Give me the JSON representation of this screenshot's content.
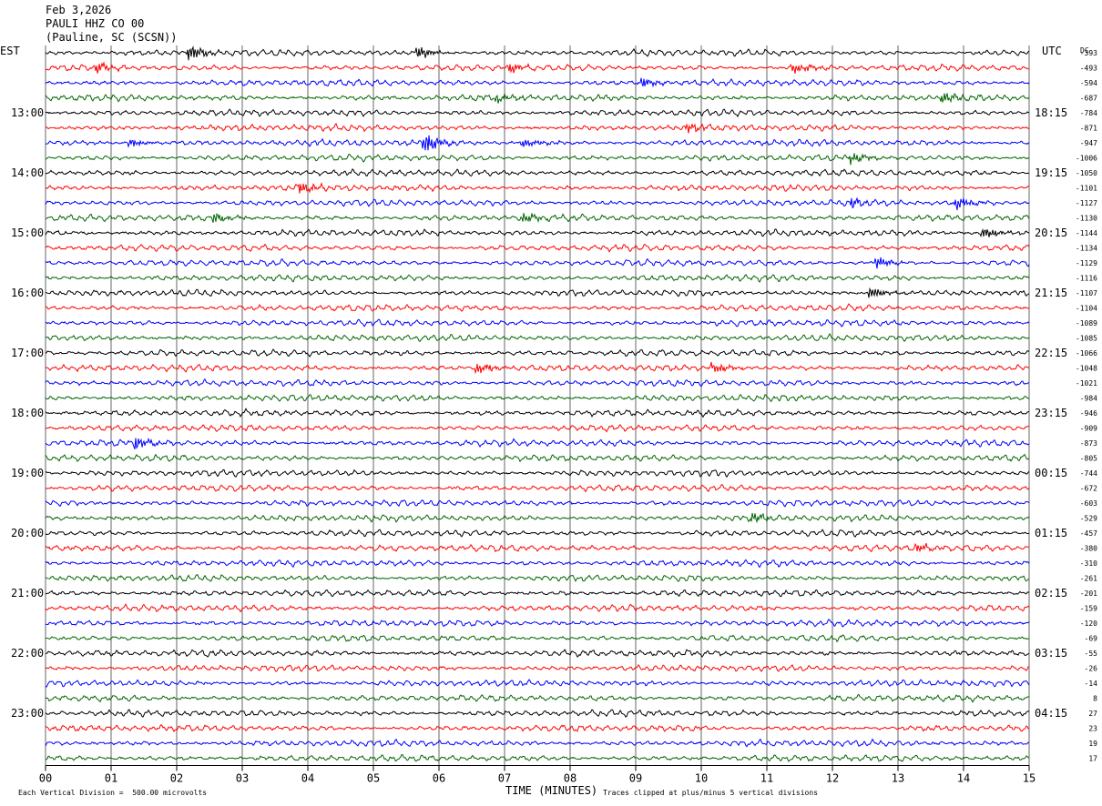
{
  "header": {
    "date": "Feb 3,2026",
    "station": "PAULI HHZ CO 00",
    "location": "(Pauline, SC (SCSN))"
  },
  "labels": {
    "left_zone": "EST",
    "right_zone": "UTC",
    "dc_label": "DC",
    "x_axis_title": "TIME (MINUTES)",
    "scale_note": "Each Vertical Division =  500.00 microvolts",
    "clip_note": "Traces clipped at plus/minus 5 vertical divisions"
  },
  "colors": {
    "trace_cycle": [
      "#000000",
      "#ff0000",
      "#0000ff",
      "#006400"
    ],
    "grid": "#000000"
  },
  "chart_data": {
    "type": "line",
    "title": "",
    "xlabel": "TIME (MINUTES)",
    "ylabel": "",
    "xlim": [
      0,
      15
    ],
    "x_ticks": [
      "00",
      "01",
      "02",
      "03",
      "04",
      "05",
      "06",
      "07",
      "08",
      "09",
      "10",
      "11",
      "12",
      "13",
      "14",
      "15"
    ],
    "row_minutes": 15,
    "num_rows": 48,
    "est_hour_labels": [
      "13:00",
      "14:00",
      "15:00",
      "16:00",
      "17:00",
      "18:00",
      "19:00",
      "20:00",
      "21:00",
      "22:00",
      "23:00"
    ],
    "utc_labels": [
      "18:15",
      "19:15",
      "20:15",
      "21:15",
      "22:15",
      "23:15",
      "00:15",
      "01:15",
      "02:15",
      "03:15",
      "04:15"
    ],
    "dc_offsets": [
      -393,
      -493,
      -594,
      -687,
      -784,
      -871,
      -947,
      -1006,
      -1050,
      -1101,
      -1127,
      -1130,
      -1144,
      -1134,
      -1129,
      -1116,
      -1107,
      -1104,
      -1089,
      -1085,
      -1066,
      -1048,
      -1021,
      -984,
      -946,
      -909,
      -873,
      -805,
      -744,
      -672,
      -603,
      -529,
      -457,
      -380,
      -310,
      -261,
      -201,
      -159,
      -120,
      -69,
      -55,
      -26,
      -14,
      8,
      27,
      23,
      19,
      17
    ],
    "events": [
      {
        "row": 0,
        "minute": 2.2,
        "strength": 2.6
      },
      {
        "row": 0,
        "minute": 5.7,
        "strength": 1.6
      },
      {
        "row": 1,
        "minute": 0.8,
        "strength": 1.3
      },
      {
        "row": 1,
        "minute": 7.1,
        "strength": 1.2
      },
      {
        "row": 1,
        "minute": 11.4,
        "strength": 1.6
      },
      {
        "row": 2,
        "minute": 9.1,
        "strength": 1.4
      },
      {
        "row": 3,
        "minute": 6.9,
        "strength": 1.3
      },
      {
        "row": 3,
        "minute": 13.7,
        "strength": 1.4
      },
      {
        "row": 5,
        "minute": 9.8,
        "strength": 1.2
      },
      {
        "row": 6,
        "minute": 1.3,
        "strength": 1.2
      },
      {
        "row": 6,
        "minute": 5.8,
        "strength": 3.0
      },
      {
        "row": 6,
        "minute": 7.3,
        "strength": 1.2
      },
      {
        "row": 7,
        "minute": 12.3,
        "strength": 1.4
      },
      {
        "row": 9,
        "minute": 3.9,
        "strength": 1.6
      },
      {
        "row": 10,
        "minute": 12.3,
        "strength": 1.2
      },
      {
        "row": 10,
        "minute": 13.9,
        "strength": 1.6
      },
      {
        "row": 11,
        "minute": 2.6,
        "strength": 1.3
      },
      {
        "row": 11,
        "minute": 7.3,
        "strength": 1.2
      },
      {
        "row": 12,
        "minute": 14.3,
        "strength": 1.6
      },
      {
        "row": 14,
        "minute": 12.7,
        "strength": 1.4
      },
      {
        "row": 16,
        "minute": 12.6,
        "strength": 1.5
      },
      {
        "row": 21,
        "minute": 6.6,
        "strength": 1.6
      },
      {
        "row": 21,
        "minute": 10.2,
        "strength": 1.4
      },
      {
        "row": 26,
        "minute": 1.4,
        "strength": 1.6
      },
      {
        "row": 31,
        "minute": 10.8,
        "strength": 1.3
      },
      {
        "row": 33,
        "minute": 13.3,
        "strength": 1.2
      }
    ]
  }
}
